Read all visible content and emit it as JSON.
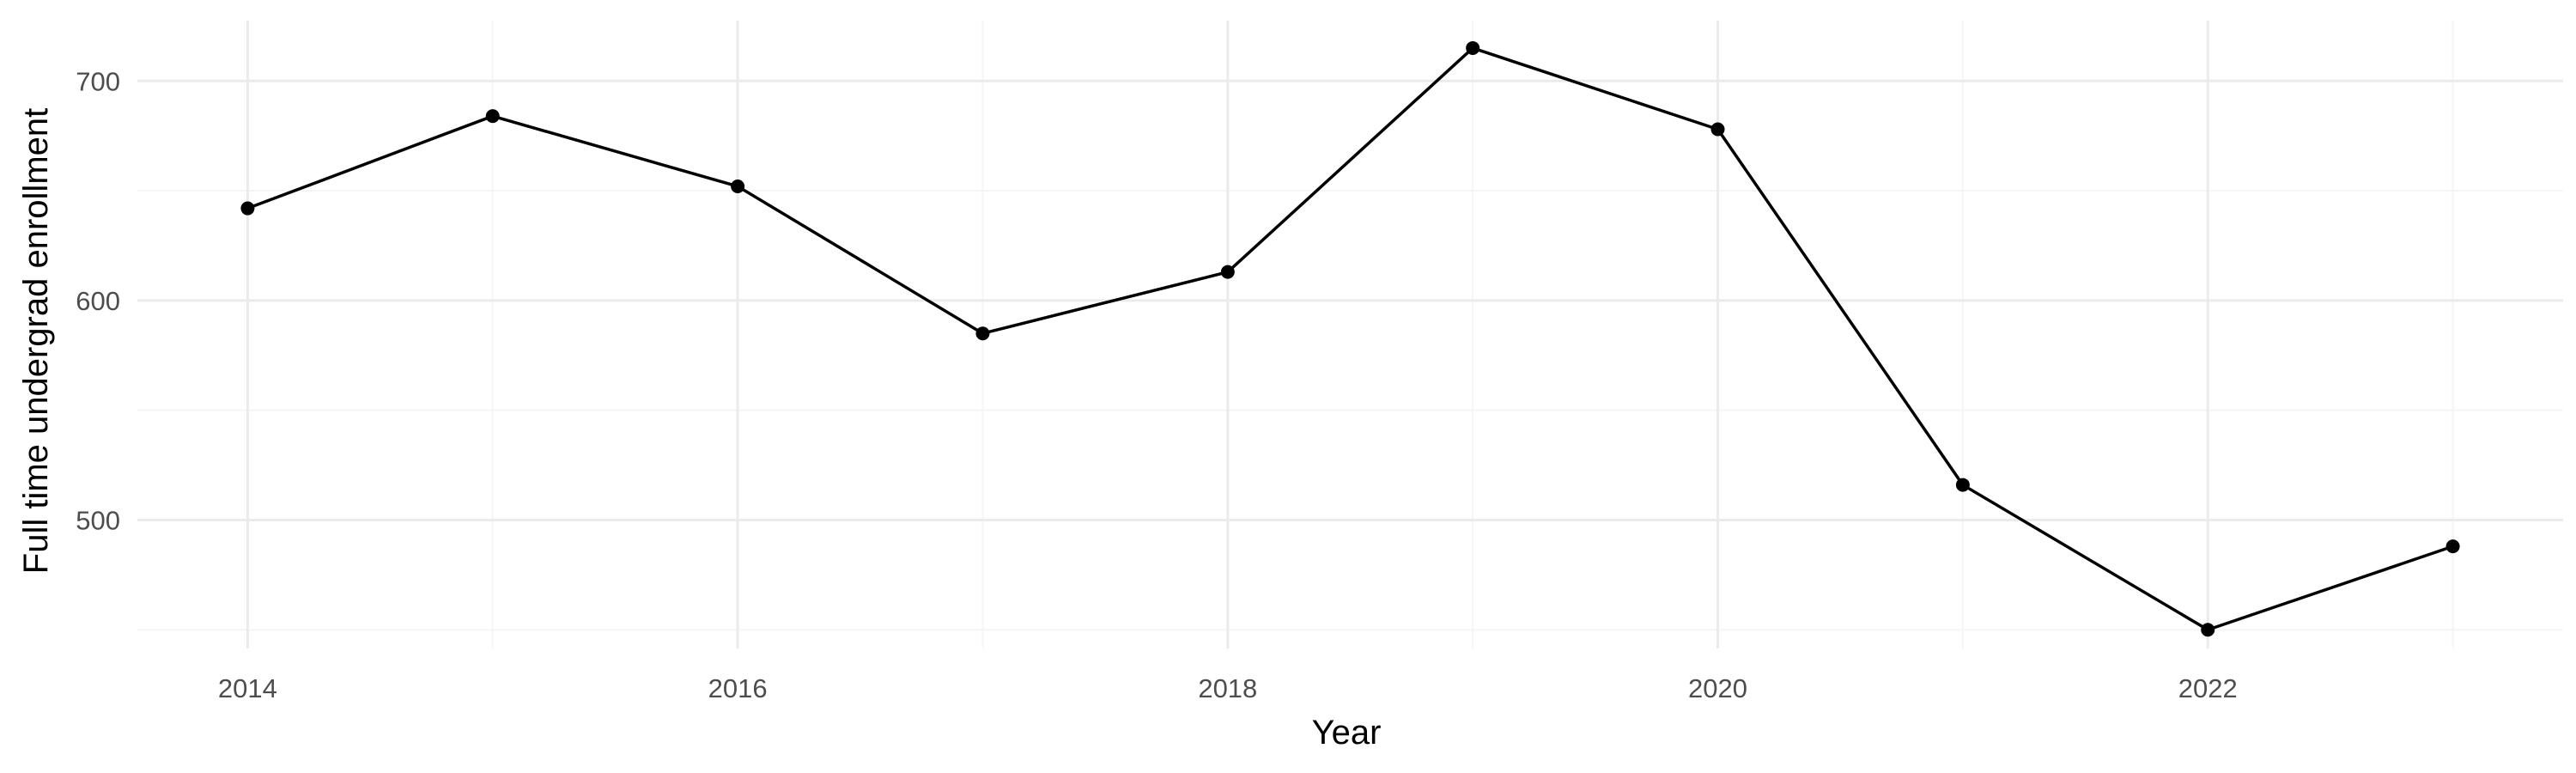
{
  "chart_data": {
    "type": "line",
    "title": "",
    "xlabel": "Year",
    "ylabel": "Full time undergrad enrollment",
    "x": [
      2014,
      2015,
      2016,
      2017,
      2018,
      2019,
      2020,
      2021,
      2022,
      2023
    ],
    "series": [
      {
        "values": [
          642,
          684,
          652,
          585,
          613,
          715,
          678,
          516,
          450,
          488
        ]
      }
    ],
    "xlim": [
      2013.55,
      2023.45
    ],
    "ylim": [
      441.5,
      727.5
    ],
    "x_ticks": [
      2014,
      2016,
      2018,
      2020,
      2022
    ],
    "x_tick_labels": [
      "2014",
      "2016",
      "2018",
      "2020",
      "2022"
    ],
    "x_minor_ticks": [
      2015,
      2017,
      2019,
      2021,
      2023
    ],
    "y_ticks": [
      500,
      600,
      700
    ],
    "y_tick_labels": [
      "500",
      "600",
      "700"
    ],
    "y_minor_ticks": [
      450,
      550,
      650
    ],
    "grid": true,
    "legend": "none",
    "colors": {
      "line": "#000000",
      "points": "#000000",
      "grid_major": "#ebebeb",
      "grid_minor": "#f5f5f5",
      "tick_text": "#4d4d4d",
      "axis_title": "#000000",
      "background": "#ffffff"
    }
  }
}
